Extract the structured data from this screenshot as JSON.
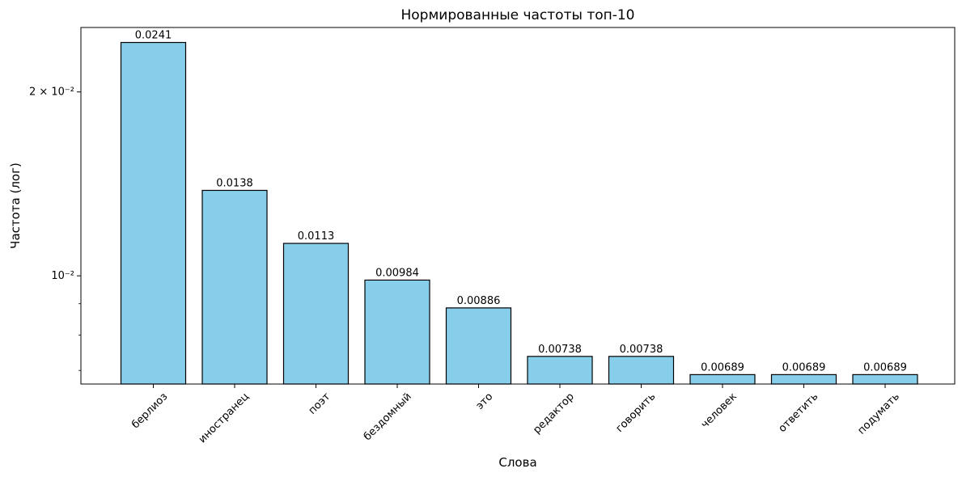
{
  "chart_data": {
    "type": "bar",
    "title": "Нормированные частоты топ-10",
    "xlabel": "Слова",
    "ylabel": "Частота (лог)",
    "yscale": "log",
    "ylim": [
      0.00665,
      0.0255
    ],
    "categories": [
      "берлиоз",
      "иностранец",
      "поэт",
      "бездомный",
      "это",
      "редактор",
      "говорить",
      "человек",
      "ответить",
      "подумать"
    ],
    "values": [
      0.0241,
      0.0138,
      0.0113,
      0.00984,
      0.00886,
      0.00738,
      0.00738,
      0.00689,
      0.00689,
      0.00689
    ],
    "value_labels": [
      "0.0241",
      "0.0138",
      "0.0113",
      "0.00984",
      "0.00886",
      "0.00738",
      "0.00738",
      "0.00689",
      "0.00689",
      "0.00689"
    ],
    "y_ticks": [
      {
        "value": 0.02,
        "label": "2 × 10⁻²"
      },
      {
        "value": 0.01,
        "label": "10⁻²"
      }
    ],
    "y_minor_ticks": [
      0.007,
      0.008,
      0.009
    ],
    "grid": false,
    "colors": {
      "bar_fill": "#87CEEB",
      "bar_edge": "#000000"
    }
  }
}
